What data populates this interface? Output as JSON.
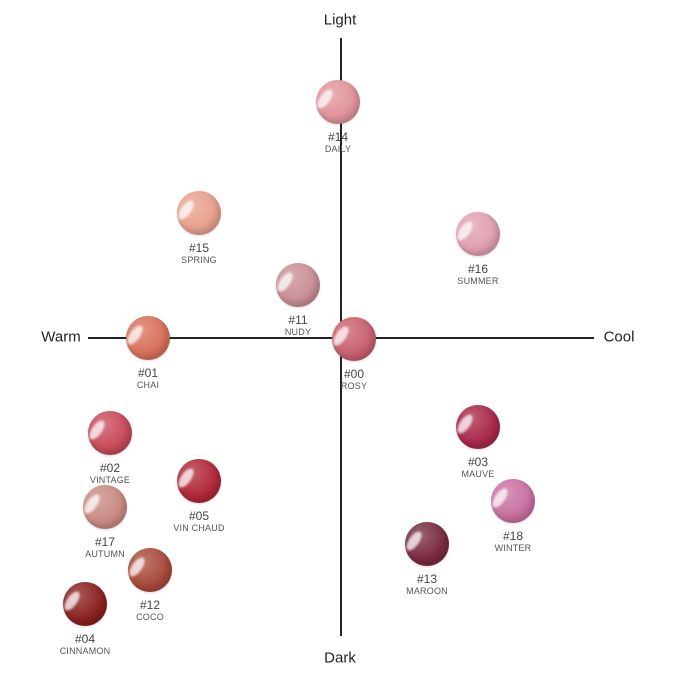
{
  "axes": {
    "top": "Light",
    "bottom": "Dark",
    "left": "Warm",
    "right": "Cool"
  },
  "shades": [
    {
      "id": "14",
      "number": "#14",
      "name": "DAILY",
      "color": "#e0939a"
    },
    {
      "id": "15",
      "number": "#15",
      "name": "SPRING",
      "color": "#e8a08e"
    },
    {
      "id": "16",
      "number": "#16",
      "name": "SUMMER",
      "color": "#e0a0b0"
    },
    {
      "id": "11",
      "number": "#11",
      "name": "NUDY",
      "color": "#c98e96"
    },
    {
      "id": "01",
      "number": "#01",
      "name": "CHAI",
      "color": "#d8705a"
    },
    {
      "id": "00",
      "number": "#00",
      "name": "ROSY",
      "color": "#c8606e"
    },
    {
      "id": "02",
      "number": "#02",
      "name": "VINTAGE",
      "color": "#c84a5a"
    },
    {
      "id": "05",
      "number": "#05",
      "name": "VIN CHAUD",
      "color": "#b02838"
    },
    {
      "id": "03",
      "number": "#03",
      "name": "MAUVE",
      "color": "#a82848"
    },
    {
      "id": "17",
      "number": "#17",
      "name": "AUTUMN",
      "color": "#c88a82"
    },
    {
      "id": "18",
      "number": "#18",
      "name": "WINTER",
      "color": "#c870a0"
    },
    {
      "id": "13",
      "number": "#13",
      "name": "MAROON",
      "color": "#7a2a40"
    },
    {
      "id": "12",
      "number": "#12",
      "name": "COCO",
      "color": "#a84a3a"
    },
    {
      "id": "04",
      "number": "#04",
      "name": "CINNAMON",
      "color": "#8a2020"
    }
  ]
}
